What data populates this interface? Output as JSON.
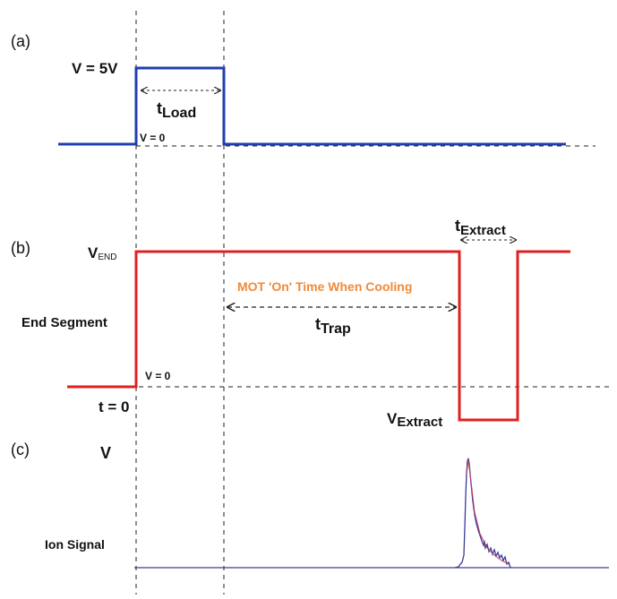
{
  "panels": {
    "a": "(a)",
    "b": "(b)",
    "c": "(c)"
  },
  "panel_a": {
    "voltage_high": "V = 5V",
    "zero_label": "V = 0",
    "t_load_main": "t",
    "t_load_sub": "Load"
  },
  "panel_b": {
    "v_end_main": "V",
    "v_end_sub": "END",
    "end_segment": "End Segment",
    "zero_label": "V = 0",
    "t_zero": "t = 0",
    "mot_annotation": "MOT 'On' Time When Cooling",
    "t_trap_main": "t",
    "t_trap_sub": "Trap",
    "t_extract_main": "t",
    "t_extract_sub": "Extract",
    "v_extract_main": "V",
    "v_extract_sub": "Extract"
  },
  "panel_c": {
    "v_label": "V",
    "ion_signal": "Ion Signal"
  },
  "colors": {
    "load_pulse": "#1f3fb0",
    "end_segment": "#e02020",
    "ion_signal": "#3a3a9a",
    "mot_annotation": "#f08a3a",
    "guides": "#222222"
  },
  "icons": {
    "double_arrow": "dashed-double-arrow"
  }
}
